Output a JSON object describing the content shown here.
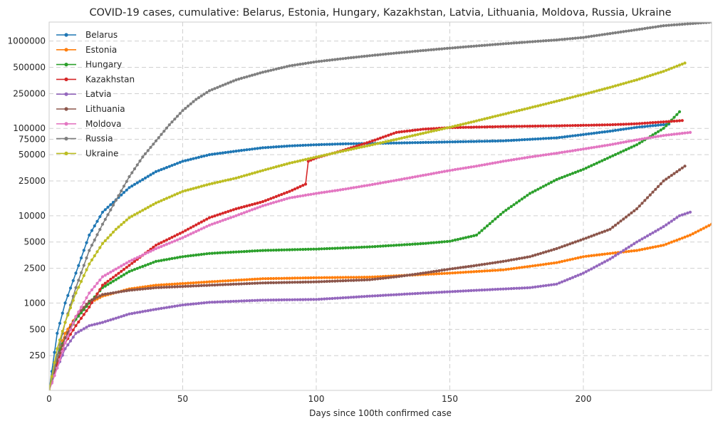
{
  "chart_data": {
    "type": "line",
    "title": "COVID-19 cases, cumulative: Belarus, Estonia, Hungary, Kazakhstan, Latvia, Lithuania, Moldova, Russia, Ukraine",
    "xlabel": "Days since 100th confirmed case",
    "ylabel": "",
    "xlim": [
      0,
      248
    ],
    "ylim": [
      100,
      1650000
    ],
    "yscale": "log",
    "x_ticks": [
      0,
      50,
      100,
      150,
      200
    ],
    "x_tick_labels": [
      "0",
      "50",
      "100",
      "150",
      "200"
    ],
    "y_ticks": [
      250,
      500,
      1000,
      2500,
      5000,
      10000,
      25000,
      50000,
      75000,
      100000,
      250000,
      500000,
      1000000
    ],
    "y_tick_labels": [
      "250",
      "500",
      "1000",
      "2500",
      "5000",
      "10000",
      "25000",
      "50000",
      "75000",
      "100000",
      "250000",
      "500000",
      "1000000"
    ],
    "grid": true,
    "legend_position": "top-left",
    "series": [
      {
        "name": "Belarus",
        "color": "#1f77b4",
        "points": [
          [
            0,
            100
          ],
          [
            3,
            450
          ],
          [
            6,
            1000
          ],
          [
            10,
            2200
          ],
          [
            15,
            6000
          ],
          [
            20,
            11000
          ],
          [
            30,
            21000
          ],
          [
            40,
            32000
          ],
          [
            50,
            42000
          ],
          [
            60,
            50000
          ],
          [
            70,
            55000
          ],
          [
            80,
            60000
          ],
          [
            90,
            63000
          ],
          [
            100,
            65000
          ],
          [
            110,
            66500
          ],
          [
            130,
            68000
          ],
          [
            150,
            70000
          ],
          [
            170,
            72000
          ],
          [
            190,
            78000
          ],
          [
            200,
            85000
          ],
          [
            210,
            93000
          ],
          [
            220,
            103000
          ],
          [
            232,
            112000
          ]
        ]
      },
      {
        "name": "Estonia",
        "color": "#ff7f0e",
        "points": [
          [
            0,
            100
          ],
          [
            3,
            250
          ],
          [
            6,
            450
          ],
          [
            10,
            700
          ],
          [
            15,
            1000
          ],
          [
            20,
            1200
          ],
          [
            30,
            1450
          ],
          [
            40,
            1600
          ],
          [
            60,
            1750
          ],
          [
            80,
            1900
          ],
          [
            100,
            1950
          ],
          [
            120,
            1980
          ],
          [
            150,
            2200
          ],
          [
            170,
            2400
          ],
          [
            190,
            2900
          ],
          [
            200,
            3400
          ],
          [
            210,
            3700
          ],
          [
            220,
            4000
          ],
          [
            230,
            4600
          ],
          [
            240,
            6000
          ],
          [
            248,
            8000
          ]
        ]
      },
      {
        "name": "Hungary",
        "color": "#2ca02c",
        "points": [
          [
            0,
            100
          ],
          [
            3,
            250
          ],
          [
            6,
            400
          ],
          [
            10,
            650
          ],
          [
            15,
            1000
          ],
          [
            20,
            1500
          ],
          [
            30,
            2300
          ],
          [
            40,
            3000
          ],
          [
            50,
            3400
          ],
          [
            60,
            3700
          ],
          [
            80,
            4000
          ],
          [
            100,
            4150
          ],
          [
            120,
            4400
          ],
          [
            140,
            4800
          ],
          [
            150,
            5100
          ],
          [
            160,
            6000
          ],
          [
            170,
            11000
          ],
          [
            180,
            18000
          ],
          [
            190,
            26000
          ],
          [
            200,
            34000
          ],
          [
            210,
            47000
          ],
          [
            220,
            65000
          ],
          [
            230,
            100000
          ],
          [
            236,
            155000
          ]
        ]
      },
      {
        "name": "Kazakhstan",
        "color": "#d62728",
        "points": [
          [
            0,
            100
          ],
          [
            3,
            200
          ],
          [
            6,
            350
          ],
          [
            10,
            550
          ],
          [
            15,
            900
          ],
          [
            20,
            1600
          ],
          [
            30,
            2700
          ],
          [
            40,
            4600
          ],
          [
            50,
            6500
          ],
          [
            60,
            9500
          ],
          [
            70,
            12000
          ],
          [
            80,
            14500
          ],
          [
            90,
            19000
          ],
          [
            96,
            23000
          ],
          [
            97,
            42000
          ],
          [
            100,
            46000
          ],
          [
            110,
            56000
          ],
          [
            120,
            70000
          ],
          [
            130,
            90000
          ],
          [
            140,
            98000
          ],
          [
            150,
            102000
          ],
          [
            170,
            105000
          ],
          [
            190,
            107000
          ],
          [
            210,
            110000
          ],
          [
            220,
            113000
          ],
          [
            237,
            123000
          ]
        ]
      },
      {
        "name": "Latvia",
        "color": "#9467bd",
        "points": [
          [
            0,
            100
          ],
          [
            3,
            180
          ],
          [
            6,
            300
          ],
          [
            10,
            450
          ],
          [
            15,
            550
          ],
          [
            20,
            600
          ],
          [
            30,
            750
          ],
          [
            40,
            850
          ],
          [
            50,
            950
          ],
          [
            60,
            1020
          ],
          [
            80,
            1080
          ],
          [
            100,
            1100
          ],
          [
            120,
            1200
          ],
          [
            140,
            1300
          ],
          [
            160,
            1400
          ],
          [
            180,
            1500
          ],
          [
            190,
            1650
          ],
          [
            200,
            2200
          ],
          [
            210,
            3200
          ],
          [
            220,
            5000
          ],
          [
            230,
            7500
          ],
          [
            236,
            10000
          ],
          [
            240,
            11000
          ]
        ]
      },
      {
        "name": "Lithuania",
        "color": "#8c564b",
        "points": [
          [
            0,
            100
          ],
          [
            3,
            220
          ],
          [
            6,
            400
          ],
          [
            10,
            700
          ],
          [
            15,
            1050
          ],
          [
            20,
            1250
          ],
          [
            30,
            1400
          ],
          [
            40,
            1500
          ],
          [
            60,
            1600
          ],
          [
            80,
            1700
          ],
          [
            100,
            1750
          ],
          [
            120,
            1850
          ],
          [
            130,
            2000
          ],
          [
            140,
            2200
          ],
          [
            150,
            2450
          ],
          [
            160,
            2700
          ],
          [
            170,
            3000
          ],
          [
            180,
            3400
          ],
          [
            190,
            4200
          ],
          [
            200,
            5400
          ],
          [
            210,
            7000
          ],
          [
            220,
            12000
          ],
          [
            230,
            25000
          ],
          [
            238,
            37000
          ]
        ]
      },
      {
        "name": "Moldova",
        "color": "#e377c2",
        "points": [
          [
            0,
            100
          ],
          [
            3,
            180
          ],
          [
            6,
            350
          ],
          [
            10,
            700
          ],
          [
            15,
            1300
          ],
          [
            20,
            2000
          ],
          [
            30,
            3000
          ],
          [
            40,
            4200
          ],
          [
            50,
            5600
          ],
          [
            60,
            7800
          ],
          [
            70,
            10000
          ],
          [
            80,
            13000
          ],
          [
            90,
            16000
          ],
          [
            100,
            18000
          ],
          [
            110,
            20000
          ],
          [
            120,
            22500
          ],
          [
            130,
            25500
          ],
          [
            140,
            29000
          ],
          [
            150,
            33000
          ],
          [
            160,
            37000
          ],
          [
            170,
            42000
          ],
          [
            180,
            47000
          ],
          [
            190,
            52000
          ],
          [
            200,
            58000
          ],
          [
            210,
            65000
          ],
          [
            220,
            74000
          ],
          [
            230,
            83000
          ],
          [
            240,
            90000
          ]
        ]
      },
      {
        "name": "Russia",
        "color": "#7f7f7f",
        "points": [
          [
            0,
            100
          ],
          [
            3,
            250
          ],
          [
            6,
            600
          ],
          [
            10,
            1500
          ],
          [
            15,
            4000
          ],
          [
            20,
            8000
          ],
          [
            25,
            15000
          ],
          [
            30,
            28000
          ],
          [
            35,
            47000
          ],
          [
            40,
            72000
          ],
          [
            45,
            110000
          ],
          [
            50,
            160000
          ],
          [
            55,
            215000
          ],
          [
            60,
            270000
          ],
          [
            70,
            360000
          ],
          [
            80,
            440000
          ],
          [
            90,
            520000
          ],
          [
            100,
            580000
          ],
          [
            110,
            630000
          ],
          [
            120,
            680000
          ],
          [
            130,
            730000
          ],
          [
            140,
            780000
          ],
          [
            150,
            830000
          ],
          [
            160,
            880000
          ],
          [
            170,
            930000
          ],
          [
            180,
            980000
          ],
          [
            190,
            1030000
          ],
          [
            200,
            1100000
          ],
          [
            210,
            1220000
          ],
          [
            220,
            1350000
          ],
          [
            230,
            1500000
          ],
          [
            248,
            1650000
          ]
        ]
      },
      {
        "name": "Ukraine",
        "color": "#bcbd22",
        "points": [
          [
            0,
            100
          ],
          [
            3,
            300
          ],
          [
            6,
            600
          ],
          [
            10,
            1300
          ],
          [
            15,
            2800
          ],
          [
            20,
            4800
          ],
          [
            25,
            7000
          ],
          [
            30,
            9500
          ],
          [
            40,
            14000
          ],
          [
            50,
            19000
          ],
          [
            60,
            23000
          ],
          [
            70,
            27000
          ],
          [
            80,
            33000
          ],
          [
            90,
            40000
          ],
          [
            100,
            47000
          ],
          [
            110,
            55000
          ],
          [
            120,
            64000
          ],
          [
            130,
            75000
          ],
          [
            140,
            88000
          ],
          [
            150,
            103000
          ],
          [
            160,
            122000
          ],
          [
            170,
            145000
          ],
          [
            180,
            172000
          ],
          [
            190,
            205000
          ],
          [
            200,
            245000
          ],
          [
            210,
            295000
          ],
          [
            220,
            360000
          ],
          [
            230,
            450000
          ],
          [
            238,
            560000
          ]
        ]
      }
    ]
  }
}
